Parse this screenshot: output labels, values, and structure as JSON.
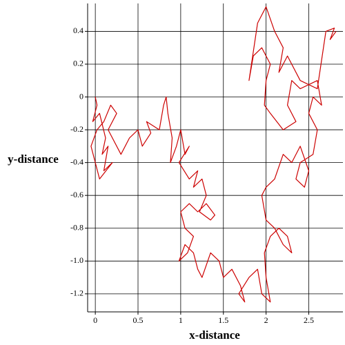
{
  "chart_data": {
    "type": "line",
    "xlabel": "x-distance",
    "ylabel": "y-distance",
    "color": "#cc0000",
    "grid": true,
    "xlim": [
      -0.09,
      2.9
    ],
    "ylim": [
      -1.31,
      0.57
    ],
    "xticks": [
      0,
      0.5,
      1,
      1.5,
      2,
      2.5
    ],
    "yticks": [
      0.4,
      0.2,
      0,
      -0.2,
      -0.4,
      -0.6,
      -0.8,
      {
        "value": -1,
        "label": "-1.0"
      },
      -1.2
    ],
    "x": [
      0,
      0.02,
      -0.03,
      0.05,
      0.12,
      0.08,
      0.15,
      0.1,
      0.2,
      0.05,
      -0.05,
      0.02,
      0.1,
      0.18,
      0.25,
      0.15,
      0.3,
      0.4,
      0.5,
      0.55,
      0.65,
      0.6,
      0.75,
      0.8,
      0.83,
      0.85,
      0.9,
      0.88,
      0.95,
      1.0,
      1.05,
      1.1,
      0.98,
      1.1,
      1.2,
      1.15,
      1.25,
      1.3,
      1.22,
      1.35,
      1.4,
      1.3,
      1.2,
      1.1,
      1.0,
      1.05,
      1.15,
      1.08,
      0.98,
      1.05,
      1.15,
      1.2,
      1.25,
      1.35,
      1.45,
      1.5,
      1.6,
      1.7,
      1.75,
      1.68,
      1.8,
      1.9,
      1.95,
      2.05,
      2.0,
      1.98,
      2.05,
      2.15,
      2.25,
      2.3,
      2.2,
      2.1,
      2.0,
      1.95,
      2.0,
      2.1,
      2.2,
      2.3,
      2.4,
      2.5,
      2.45,
      2.35,
      2.4,
      2.55,
      2.6,
      2.5,
      2.55,
      2.65,
      2.6,
      2.4,
      2.3,
      2.25,
      2.35,
      2.2,
      2.05,
      1.98,
      2.0,
      2.05,
      1.95,
      1.85,
      1.8,
      1.9,
      2.0,
      2.1,
      2.2,
      2.15,
      2.25,
      2.4,
      2.6,
      2.7,
      2.8,
      2.75,
      2.82
    ],
    "values": [
      0,
      -0.05,
      -0.15,
      -0.1,
      -0.25,
      -0.35,
      -0.3,
      -0.45,
      -0.4,
      -0.5,
      -0.3,
      -0.2,
      -0.15,
      -0.05,
      -0.1,
      -0.2,
      -0.35,
      -0.25,
      -0.2,
      -0.3,
      -0.22,
      -0.15,
      -0.2,
      -0.05,
      0,
      -0.1,
      -0.25,
      -0.4,
      -0.3,
      -0.2,
      -0.35,
      -0.3,
      -0.4,
      -0.5,
      -0.45,
      -0.55,
      -0.5,
      -0.6,
      -0.7,
      -0.75,
      -0.72,
      -0.65,
      -0.7,
      -0.65,
      -0.7,
      -0.8,
      -0.85,
      -0.95,
      -1.0,
      -0.9,
      -0.95,
      -1.05,
      -1.1,
      -0.95,
      -1.0,
      -1.1,
      -1.05,
      -1.15,
      -1.25,
      -1.2,
      -1.1,
      -1.05,
      -1.2,
      -1.25,
      -1.1,
      -0.95,
      -0.85,
      -0.8,
      -0.85,
      -0.95,
      -0.9,
      -0.8,
      -0.75,
      -0.6,
      -0.55,
      -0.5,
      -0.35,
      -0.4,
      -0.3,
      -0.45,
      -0.55,
      -0.5,
      -0.4,
      -0.35,
      -0.2,
      -0.1,
      0,
      -0.05,
      0.1,
      0.05,
      0.1,
      -0.05,
      -0.15,
      -0.2,
      -0.1,
      -0.05,
      0.1,
      0.2,
      0.3,
      0.25,
      0.1,
      0.45,
      0.55,
      0.4,
      0.3,
      0.15,
      0.25,
      0.1,
      0.05,
      0.4,
      0.42,
      0.35,
      0.4
    ]
  }
}
